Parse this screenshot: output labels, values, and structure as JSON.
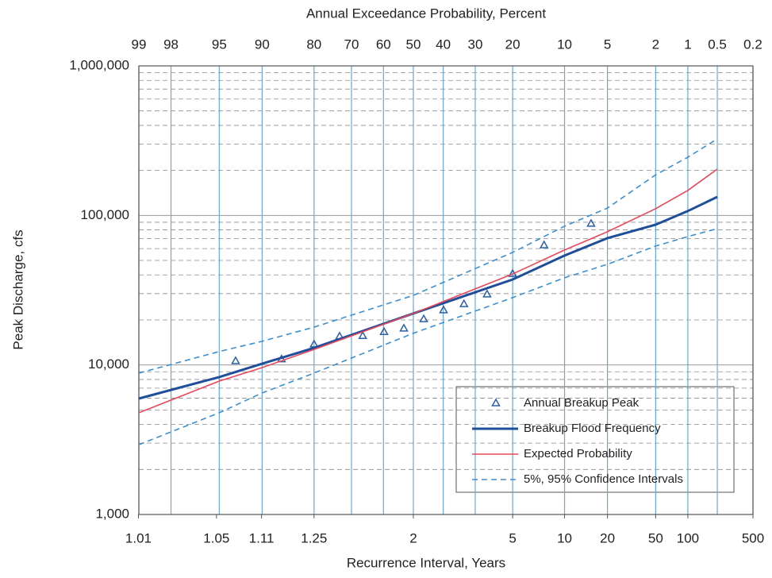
{
  "chart_data": {
    "type": "probability",
    "x_top_label": "Annual Exceedance Probability, Percent",
    "x_bottom_label": "Recurrence Interval, Years",
    "ylabel": "Peak Discharge, cfs",
    "xlim": [
      99,
      0.2
    ],
    "xticks": [
      99,
      98,
      95,
      90,
      80,
      70,
      60,
      50,
      40,
      30,
      20,
      10,
      5,
      2,
      1,
      0.5,
      0.2
    ],
    "recurrence_ticks": [
      1.01,
      1.05,
      1.11,
      1.25,
      2,
      5,
      10,
      20,
      50,
      100,
      500
    ],
    "ylim": [
      1000,
      1000000
    ],
    "yscale": "log",
    "yticks": [
      {
        "value": 1000,
        "label": "1,000"
      },
      {
        "value": 10000,
        "label": "10,000"
      },
      {
        "value": 100000,
        "label": "100,000"
      },
      {
        "value": 1000000,
        "label": "1,000,000"
      }
    ],
    "grid": true,
    "legend": "lower right",
    "series": [
      {
        "name": "Annual Breakup Peak",
        "kind": "markers",
        "color": "#2b5fa8",
        "x": [
          93.4,
          86.8,
          80.0,
          73.4,
          66.6,
          59.8,
          53.2,
          46.5,
          39.9,
          33.4,
          26.6,
          20.0,
          13.4,
          6.6
        ],
        "values": [
          10600,
          10900,
          13700,
          15500,
          15600,
          16600,
          17500,
          20200,
          23200,
          25500,
          29600,
          40600,
          63100,
          87900
        ]
      },
      {
        "name": "Breakup Flood Frequency",
        "kind": "solid",
        "color": "#1f4e9a",
        "x": [
          99,
          95,
          90,
          80,
          50,
          20,
          10,
          5,
          2,
          1,
          0.5
        ],
        "values": [
          5960,
          8300,
          10200,
          13000,
          22100,
          37300,
          53900,
          70500,
          86700,
          107000,
          133000
        ]
      },
      {
        "name": "Expected Probability",
        "kind": "thin",
        "color": "#e8485a",
        "x": [
          99,
          95,
          90,
          80,
          50,
          20,
          10,
          5,
          2,
          1,
          0.5
        ],
        "values": [
          4790,
          7800,
          9600,
          12700,
          22100,
          40600,
          58700,
          77800,
          111000,
          147000,
          204000
        ]
      },
      {
        "name": "5%, 95% Confidence Intervals",
        "kind": "dashed",
        "color": "#3b8fd0",
        "x": [
          99,
          95,
          90,
          80,
          50,
          20,
          10,
          5,
          2,
          1,
          0.5
        ],
        "values": [
          8820,
          12300,
          14400,
          17900,
          29200,
          56600,
          84700,
          112000,
          187000,
          245000,
          325000
        ]
      },
      {
        "kind": "dashed",
        "color": "#3b8fd0",
        "x": [
          99,
          95,
          90,
          80,
          50,
          20,
          10,
          5,
          2,
          1,
          0.5
        ],
        "values": [
          2930,
          4790,
          6500,
          8820,
          16300,
          28200,
          38300,
          47100,
          62400,
          72200,
          81600
        ]
      }
    ]
  }
}
